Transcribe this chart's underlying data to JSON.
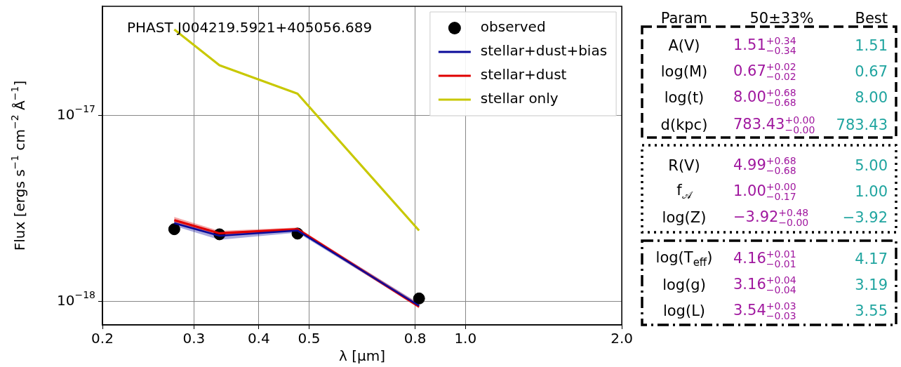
{
  "chart_data": [
    {
      "type": "line",
      "title": "PHAST J004219.5921+405056.689",
      "xlabel": "λ [μm]",
      "ylabel": "Flux [ergs s$^{−1}$ cm$^{−2}$ Å$^{−1}$]",
      "x": [
        0.275,
        0.336,
        0.475,
        0.814
      ],
      "xlim": [
        0.2,
        2.0
      ],
      "ylim": [
        7.5e-19,
        3.86e-17
      ],
      "xticks": [
        0.2,
        0.3,
        0.4,
        0.5,
        0.8,
        {
          "value": 1,
          "label": "1.0"
        },
        {
          "value": 2,
          "label": "2.0"
        }
      ],
      "yticks": [
        {
          "value": 1e-18,
          "label": "10$^{−18}$"
        },
        {
          "value": 1e-17,
          "label": "10$^{−17}$"
        }
      ],
      "log": "xy",
      "grid": true,
      "legend": "top right",
      "series": [
        {
          "name": "observed",
          "type": "scatter",
          "marker": "circle",
          "color": "#000000",
          "values": [
            2.45e-18,
            2.3e-18,
            2.32e-18,
            1.04e-18
          ]
        },
        {
          "name": "stellar+dust+bias",
          "type": "line",
          "color": "#0a0a9a",
          "values": [
            2.64e-18,
            2.26e-18,
            2.41e-18,
            9.5e-19
          ],
          "lower": [
            2.55e-18,
            2.15e-18,
            2.35e-18,
            9.3e-19
          ],
          "upper": [
            2.72e-18,
            2.35e-18,
            2.46e-18,
            9.8e-19
          ]
        },
        {
          "name": "stellar+dust",
          "type": "line",
          "color": "#e00000",
          "values": [
            2.74e-18,
            2.33e-18,
            2.45e-18,
            9.4e-19
          ],
          "lower": [
            2.65e-18,
            2.28e-18,
            2.4e-18,
            9.2e-19
          ],
          "upper": [
            2.85e-18,
            2.4e-18,
            2.5e-18,
            9.7e-19
          ]
        },
        {
          "name": "stellar only",
          "type": "line",
          "color": "#c8c800",
          "values": [
            2.9e-17,
            1.86e-17,
            1.31e-17,
            2.41e-18
          ]
        }
      ]
    },
    {
      "type": "other",
      "annotations": [
        "Param",
        "50±33%",
        "Best",
        "A(V)",
        "1.51$^{+0.34}$$_{−0.34}$",
        "1.51",
        "log(M)",
        "0.67$^{+0.02}$$_{−0.02}$",
        "0.67",
        "log(t)",
        "8.00$^{+0.68}$$_{−0.68}$",
        "8.00",
        "d(kpc)",
        "783.43$^{+0.00}$$_{−0.00}$",
        "783.43",
        "R(V)",
        "4.99$^{+0.68}$$_{−0.68}$",
        "5.00",
        "f$_{𝒜}$",
        "1.00$^{+0.00}$$_{−0.17}$",
        "1.00",
        "log(Z)",
        "−3.92$^{+0.48}$$_{−0.00}$",
        "−3.92",
        "log(T$_{eff}$)",
        "4.16$^{+0.01}$$_{−0.01}$",
        "4.17",
        "log(g)",
        "3.16$^{+0.04}$$_{−0.04}$",
        "3.19",
        "log(L)",
        "3.54$^{+0.03}$$_{−0.03}$",
        "3.55"
      ]
    }
  ]
}
